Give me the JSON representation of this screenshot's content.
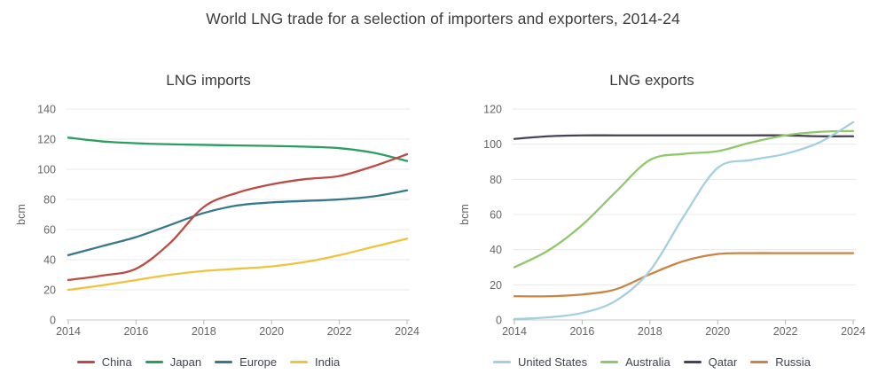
{
  "page_title": "World LNG trade for a selection of importers and exporters, 2014-24",
  "chart_data": [
    {
      "type": "line",
      "title": "LNG imports",
      "ylabel": "bcm",
      "grid": true,
      "legend_position": "bottom",
      "x": [
        2014,
        2015,
        2016,
        2017,
        2018,
        2019,
        2020,
        2021,
        2022,
        2023,
        2024
      ],
      "x_tick_labels": [
        "2014",
        "2016",
        "2018",
        "2020",
        "2022",
        "2024"
      ],
      "y_ticks": [
        0,
        20,
        40,
        60,
        80,
        100,
        120,
        140
      ],
      "ylim": [
        0,
        140
      ],
      "series": [
        {
          "name": "China",
          "color": "#bc4b45",
          "values": [
            26.5,
            29.5,
            34,
            51,
            75,
            84.5,
            90,
            93.5,
            95.5,
            102,
            110
          ]
        },
        {
          "name": "Japan",
          "color": "#2b9e5f",
          "values": [
            121,
            118.5,
            117.3,
            116.6,
            116.2,
            115.8,
            115.5,
            115,
            114,
            111,
            105.5
          ]
        },
        {
          "name": "Europe",
          "color": "#38788c",
          "values": [
            43,
            49,
            55,
            63,
            71,
            76,
            78,
            79,
            80,
            82,
            86
          ]
        },
        {
          "name": "India",
          "color": "#eec43c",
          "values": [
            20,
            23,
            26.5,
            30,
            32.5,
            34,
            35.5,
            38.5,
            43,
            48.5,
            54
          ]
        }
      ]
    },
    {
      "type": "line",
      "title": "LNG exports",
      "ylabel": "bcm",
      "grid": true,
      "legend_position": "bottom",
      "x": [
        2014,
        2015,
        2016,
        2017,
        2018,
        2019,
        2020,
        2021,
        2022,
        2023,
        2024
      ],
      "x_tick_labels": [
        "2014",
        "2016",
        "2018",
        "2020",
        "2022",
        "2024"
      ],
      "y_ticks": [
        0,
        20,
        40,
        60,
        80,
        100,
        120
      ],
      "ylim": [
        0,
        120
      ],
      "series": [
        {
          "name": "United States",
          "color": "#a3cfe0",
          "values": [
            0.5,
            1.5,
            4,
            11,
            28,
            59,
            86.5,
            91,
            94.5,
            101,
            112.5
          ]
        },
        {
          "name": "Australia",
          "color": "#8fc868",
          "values": [
            30,
            39.5,
            54,
            73,
            91,
            94.5,
            96,
            101,
            105,
            107,
            107.5
          ]
        },
        {
          "name": "Qatar",
          "color": "#46425a",
          "values": [
            103,
            104.5,
            105,
            105,
            105,
            105,
            105,
            105,
            105,
            104.5,
            104.5
          ]
        },
        {
          "name": "Russia",
          "color": "#cc8243",
          "values": [
            13.5,
            13.5,
            14.5,
            17.5,
            26,
            33.5,
            37.5,
            38,
            38,
            38,
            38
          ]
        }
      ]
    }
  ]
}
